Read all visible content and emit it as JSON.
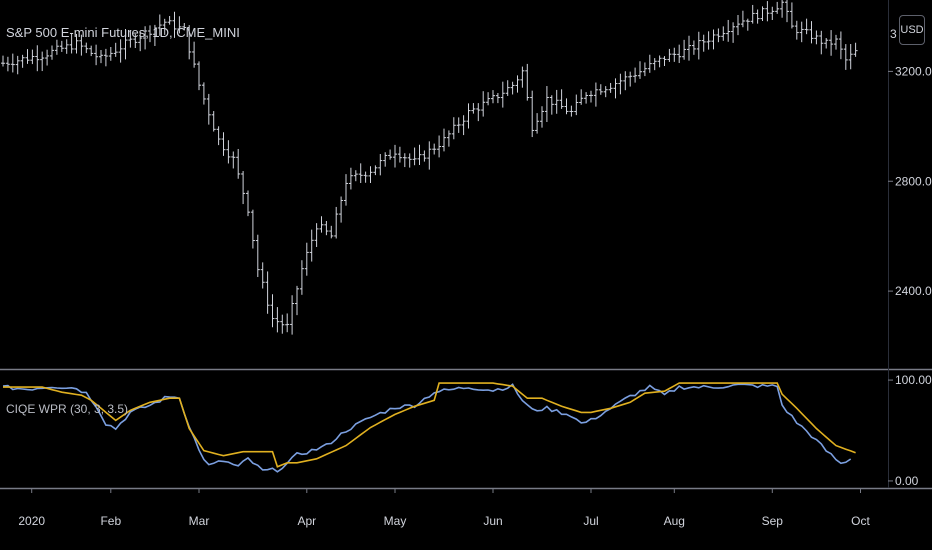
{
  "header": {
    "symbol_title": "S&P 500 E-mini Futures, 1D, CME_MINI",
    "currency_button": "USD",
    "price_axis_top_label": "3"
  },
  "indicator": {
    "title": "CIQE WPR (30, 3, 3.5)"
  },
  "colors": {
    "background": "#000000",
    "bars": "#d1d4dc",
    "divider": "#787b86",
    "wpr_line": "#7b9fe0",
    "signal_line": "#e0b020",
    "axis_text": "#d1d4dc"
  },
  "chart_data": [
    {
      "type": "ohlc",
      "title": "S&P 500 E-mini Futures, 1D, CME_MINI",
      "x_labels": [
        "2020",
        "Feb",
        "Mar",
        "Apr",
        "May",
        "Jun",
        "Jul",
        "Aug",
        "Sep",
        "Oct"
      ],
      "y_ticks": [
        2400.0,
        2800.0,
        3200.0
      ],
      "y_tick_labels": [
        "2400.00",
        "2800.00",
        "3200.00"
      ],
      "ylim": [
        2120,
        3460
      ],
      "grid": false,
      "close_anchors": [
        [
          0,
          3230
        ],
        [
          8,
          3260
        ],
        [
          15,
          3300
        ],
        [
          20,
          3245
        ],
        [
          25,
          3300
        ],
        [
          33,
          3380
        ],
        [
          37,
          3350
        ],
        [
          40,
          3150
        ],
        [
          44,
          2950
        ],
        [
          47,
          2880
        ],
        [
          50,
          2700
        ],
        [
          52,
          2480
        ],
        [
          55,
          2300
        ],
        [
          58,
          2270
        ],
        [
          61,
          2480
        ],
        [
          64,
          2640
        ],
        [
          67,
          2600
        ],
        [
          70,
          2800
        ],
        [
          75,
          2840
        ],
        [
          80,
          2910
        ],
        [
          84,
          2870
        ],
        [
          90,
          2950
        ],
        [
          95,
          3050
        ],
        [
          100,
          3100
        ],
        [
          104,
          3150
        ],
        [
          106,
          3200
        ],
        [
          108,
          3000
        ],
        [
          111,
          3100
        ],
        [
          116,
          3050
        ],
        [
          119,
          3120
        ],
        [
          124,
          3150
        ],
        [
          130,
          3200
        ],
        [
          135,
          3250
        ],
        [
          140,
          3280
        ],
        [
          145,
          3330
        ],
        [
          150,
          3380
        ],
        [
          153,
          3400
        ],
        [
          156,
          3420
        ],
        [
          159,
          3450
        ],
        [
          161,
          3360
        ],
        [
          165,
          3330
        ],
        [
          168,
          3300
        ],
        [
          170,
          3310
        ],
        [
          172,
          3240
        ],
        [
          174,
          3270
        ]
      ]
    },
    {
      "type": "line",
      "title": "CIQE WPR (30, 3, 3.5)",
      "y_ticks": [
        0,
        100
      ],
      "y_tick_labels": [
        "0.00",
        "100.00"
      ],
      "ylim": [
        -7,
        109
      ],
      "series": [
        {
          "name": "",
          "color": "#7b9fe0",
          "anchors": [
            [
              0,
              93
            ],
            [
              5,
              91
            ],
            [
              10,
              94
            ],
            [
              15,
              92
            ],
            [
              17,
              87
            ],
            [
              19,
              75
            ],
            [
              21,
              57
            ],
            [
              23,
              52
            ],
            [
              26,
              68
            ],
            [
              30,
              75
            ],
            [
              33,
              82
            ],
            [
              35,
              84
            ],
            [
              36,
              82
            ],
            [
              38,
              55
            ],
            [
              40,
              30
            ],
            [
              42,
              15
            ],
            [
              45,
              20
            ],
            [
              48,
              14
            ],
            [
              50,
              22
            ],
            [
              53,
              10
            ],
            [
              56,
              11
            ],
            [
              58,
              17
            ],
            [
              60,
              26
            ],
            [
              63,
              30
            ],
            [
              66,
              35
            ],
            [
              70,
              50
            ],
            [
              75,
              63
            ],
            [
              80,
              73
            ],
            [
              84,
              75
            ],
            [
              88,
              88
            ],
            [
              95,
              93
            ],
            [
              100,
              90
            ],
            [
              104,
              94
            ],
            [
              106,
              80
            ],
            [
              108,
              70
            ],
            [
              111,
              72
            ],
            [
              116,
              65
            ],
            [
              118,
              57
            ],
            [
              120,
              60
            ],
            [
              124,
              72
            ],
            [
              128,
              84
            ],
            [
              132,
              93
            ],
            [
              135,
              85
            ],
            [
              138,
              93
            ],
            [
              145,
              93
            ],
            [
              150,
              95
            ],
            [
              155,
              94
            ],
            [
              158,
              94
            ],
            [
              159,
              75
            ],
            [
              162,
              58
            ],
            [
              165,
              45
            ],
            [
              168,
              30
            ],
            [
              171,
              17
            ],
            [
              173,
              22
            ]
          ]
        },
        {
          "name": "",
          "color": "#e0b020",
          "anchors": [
            [
              0,
              93
            ],
            [
              8,
              93
            ],
            [
              12,
              88
            ],
            [
              16,
              85
            ],
            [
              18,
              80
            ],
            [
              21,
              68
            ],
            [
              23,
              60
            ],
            [
              26,
              70
            ],
            [
              30,
              78
            ],
            [
              34,
              82
            ],
            [
              36,
              82
            ],
            [
              38,
              52
            ],
            [
              41,
              30
            ],
            [
              45,
              25
            ],
            [
              49,
              29
            ],
            [
              55,
              29
            ],
            [
              56,
              14
            ],
            [
              58,
              18
            ],
            [
              60,
              18
            ],
            [
              64,
              22
            ],
            [
              70,
              35
            ],
            [
              75,
              53
            ],
            [
              80,
              66
            ],
            [
              84,
              74
            ],
            [
              88,
              80
            ],
            [
              89,
              97
            ],
            [
              100,
              97
            ],
            [
              104,
              94
            ],
            [
              107,
              82
            ],
            [
              110,
              82
            ],
            [
              114,
              74
            ],
            [
              118,
              68
            ],
            [
              120,
              68
            ],
            [
              124,
              72
            ],
            [
              128,
              78
            ],
            [
              131,
              87
            ],
            [
              135,
              89
            ],
            [
              138,
              97
            ],
            [
              158,
              97
            ],
            [
              159,
              86
            ],
            [
              162,
              72
            ],
            [
              166,
              52
            ],
            [
              170,
              35
            ],
            [
              174,
              28
            ]
          ]
        }
      ]
    }
  ]
}
